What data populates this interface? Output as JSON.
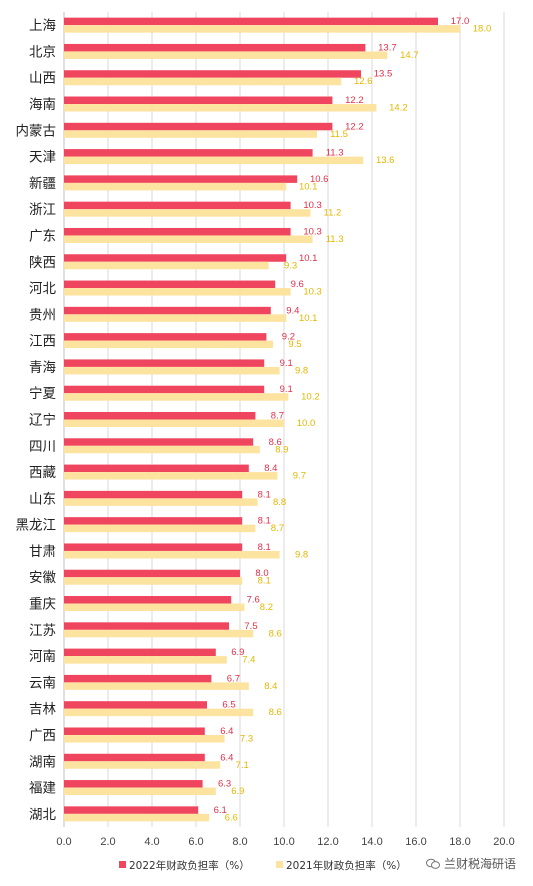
{
  "chart_data": {
    "type": "bar",
    "orientation": "horizontal",
    "categories": [
      "上海",
      "北京",
      "山西",
      "海南",
      "内蒙古",
      "天津",
      "新疆",
      "浙江",
      "广东",
      "陕西",
      "河北",
      "贵州",
      "江西",
      "青海",
      "宁夏",
      "辽宁",
      "四川",
      "西藏",
      "山东",
      "黑龙江",
      "甘肃",
      "安徽",
      "重庆",
      "江苏",
      "河南",
      "云南",
      "吉林",
      "广西",
      "湖南",
      "福建",
      "湖北"
    ],
    "series": [
      {
        "name": "2022年财政负担率（%）",
        "color": "#f0455e",
        "values": [
          17.0,
          13.7,
          13.5,
          12.2,
          12.2,
          11.3,
          10.6,
          10.3,
          10.3,
          10.1,
          9.6,
          9.4,
          9.2,
          9.1,
          9.1,
          8.7,
          8.6,
          8.4,
          8.1,
          8.1,
          8.1,
          8.0,
          7.6,
          7.5,
          6.9,
          6.7,
          6.5,
          6.4,
          6.4,
          6.3,
          6.1
        ]
      },
      {
        "name": "2021年财政负担率（%）",
        "color": "#fde3a0",
        "values": [
          18.0,
          14.7,
          12.6,
          14.2,
          11.5,
          13.6,
          10.1,
          11.2,
          11.3,
          9.3,
          10.3,
          10.1,
          9.5,
          9.8,
          10.2,
          10.0,
          8.9,
          9.7,
          8.8,
          8.7,
          9.8,
          8.1,
          8.2,
          8.6,
          7.4,
          8.4,
          8.6,
          7.3,
          7.1,
          6.9,
          6.6
        ]
      }
    ],
    "value_label_colors": [
      "#e0304a",
      "#e3b800"
    ],
    "xlim": [
      0,
      20
    ],
    "xticks": [
      "0.0",
      "2.0",
      "4.0",
      "6.0",
      "8.0",
      "10.0",
      "12.0",
      "14.0",
      "16.0",
      "18.0",
      "20.0"
    ],
    "grid": true,
    "legend_position": "bottom"
  },
  "watermark": {
    "text": "兰财税海研语"
  }
}
